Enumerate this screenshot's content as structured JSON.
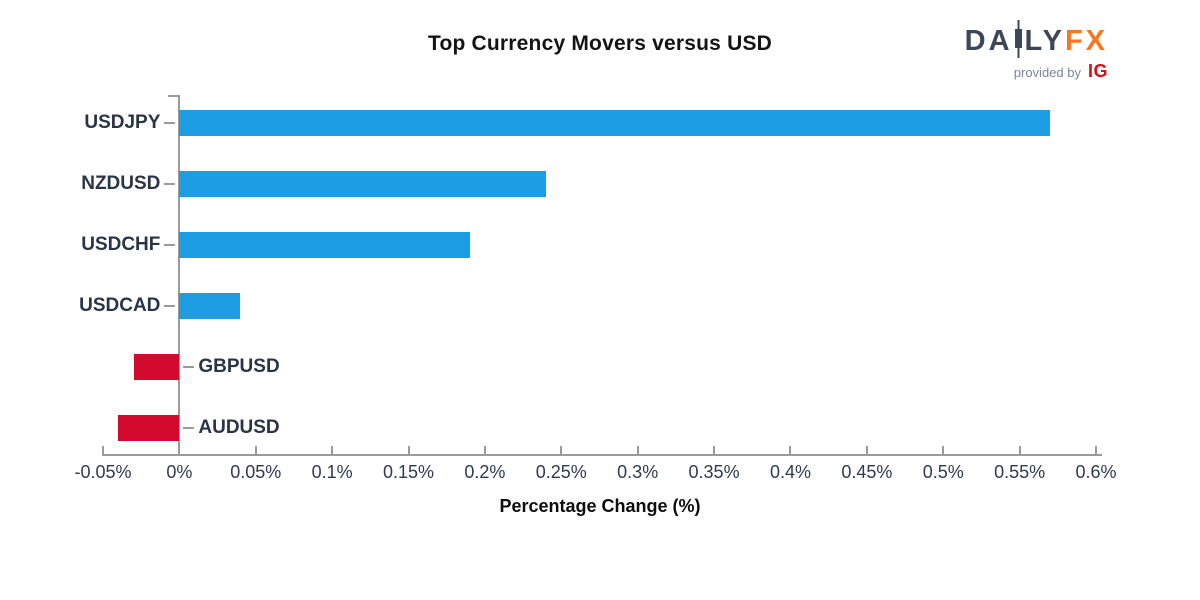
{
  "title": "Top Currency Movers versus USD",
  "logo": {
    "word_left": "DA",
    "word_right": "LY",
    "word_fx": "FX",
    "provided_by": "provided by",
    "ig": "IG"
  },
  "colors": {
    "positive_bar": "#1c9de4",
    "negative_bar": "#d20a2d",
    "axis": "#9a9a9a",
    "category_label": "#2a3447",
    "tick_label": "#2e3a50",
    "logo_slate": "#3d4757",
    "logo_orange": "#f4781f",
    "ig_red": "#e30613"
  },
  "chart_data": {
    "type": "bar",
    "orientation": "horizontal",
    "title": "Top Currency Movers versus USD",
    "categories": [
      "USDJPY",
      "NZDUSD",
      "USDCHF",
      "USDCAD",
      "GBPUSD",
      "AUDUSD"
    ],
    "values": [
      0.57,
      0.24,
      0.19,
      0.04,
      -0.03,
      -0.04
    ],
    "xlabel": "Percentage Change (%)",
    "ylabel": "",
    "xlim": [
      -0.05,
      0.6
    ],
    "x_tick_values": [
      -0.05,
      0,
      0.05,
      0.1,
      0.15,
      0.2,
      0.25,
      0.3,
      0.35,
      0.4,
      0.45,
      0.5,
      0.55,
      0.6
    ],
    "x_tick_labels": [
      "-0.05%",
      "0%",
      "0.05%",
      "0.1%",
      "0.15%",
      "0.2%",
      "0.25%",
      "0.3%",
      "0.35%",
      "0.4%",
      "0.45%",
      "0.5%",
      "0.55%",
      "0.6%"
    ],
    "grid": false,
    "legend": "none",
    "positive_color": "#1c9de4",
    "negative_color": "#d20a2d"
  }
}
